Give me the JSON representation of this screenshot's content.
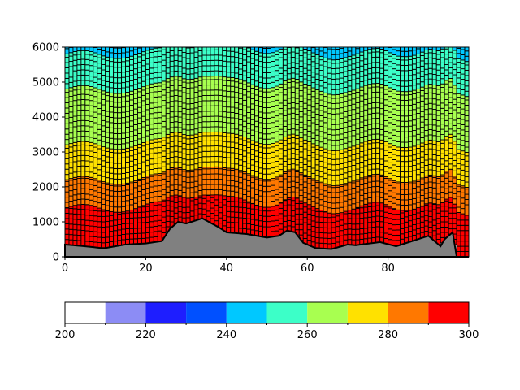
{
  "chart_data": [
    {
      "type": "heatmap",
      "title": "",
      "xlabel": "",
      "ylabel": "",
      "xlim": [
        0,
        100
      ],
      "ylim": [
        0,
        6000
      ],
      "x_ticks": [
        0,
        20,
        40,
        60,
        80
      ],
      "y_ticks": [
        0,
        1000,
        2000,
        3000,
        4000,
        5000,
        6000
      ],
      "x_tick_labels": [
        "0",
        "20",
        "40",
        "60",
        "80"
      ],
      "y_tick_labels": [
        "0",
        "1000",
        "2000",
        "3000",
        "4000",
        "5000",
        "6000"
      ],
      "grid": false,
      "columns": 100,
      "mask_color": "#808080",
      "cell_edge_color": "#000000",
      "ground_height_profile": {
        "x": [
          0,
          5,
          9,
          10,
          15,
          20,
          24,
          26,
          28,
          30,
          34,
          38,
          40,
          45,
          50,
          53,
          55,
          57,
          59,
          62,
          66,
          70,
          72,
          78,
          82,
          86,
          90,
          93,
          94,
          96,
          97,
          98,
          100
        ],
        "y": [
          350,
          300,
          250,
          250,
          350,
          380,
          450,
          800,
          1000,
          950,
          1100,
          850,
          700,
          650,
          550,
          600,
          750,
          700,
          400,
          250,
          220,
          350,
          330,
          420,
          300,
          450,
          600,
          300,
          500,
          700,
          0,
          0,
          0
        ]
      },
      "color_layers_at_x0": [
        {
          "value": 300,
          "top": 1200
        },
        {
          "value": 290,
          "top": 2000
        },
        {
          "value": 280,
          "top": 3000
        },
        {
          "value": 270,
          "top": 4600
        },
        {
          "value": 260,
          "top": 5600
        },
        {
          "value": 250,
          "top": 6000
        }
      ]
    },
    {
      "type": "colorbar",
      "orientation": "horizontal",
      "range": [
        200,
        300
      ],
      "bins": [
        {
          "from": 200,
          "to": 210,
          "color": "#ffffff"
        },
        {
          "from": 210,
          "to": 220,
          "color": "#8c8cf5"
        },
        {
          "from": 220,
          "to": 230,
          "color": "#1e1eff"
        },
        {
          "from": 230,
          "to": 240,
          "color": "#0050ff"
        },
        {
          "from": 240,
          "to": 250,
          "color": "#00c8ff"
        },
        {
          "from": 250,
          "to": 260,
          "color": "#3cffc8"
        },
        {
          "from": 260,
          "to": 270,
          "color": "#a8ff50"
        },
        {
          "from": 270,
          "to": 280,
          "color": "#ffe100"
        },
        {
          "from": 280,
          "to": 290,
          "color": "#ff7800"
        },
        {
          "from": 290,
          "to": 300,
          "color": "#ff0000"
        }
      ],
      "tick_labels": [
        "200",
        "220",
        "240",
        "260",
        "280",
        "300"
      ],
      "ticks": [
        200,
        220,
        240,
        260,
        280,
        300
      ],
      "minor_ticks": [
        210,
        230,
        250,
        270,
        290
      ]
    }
  ]
}
